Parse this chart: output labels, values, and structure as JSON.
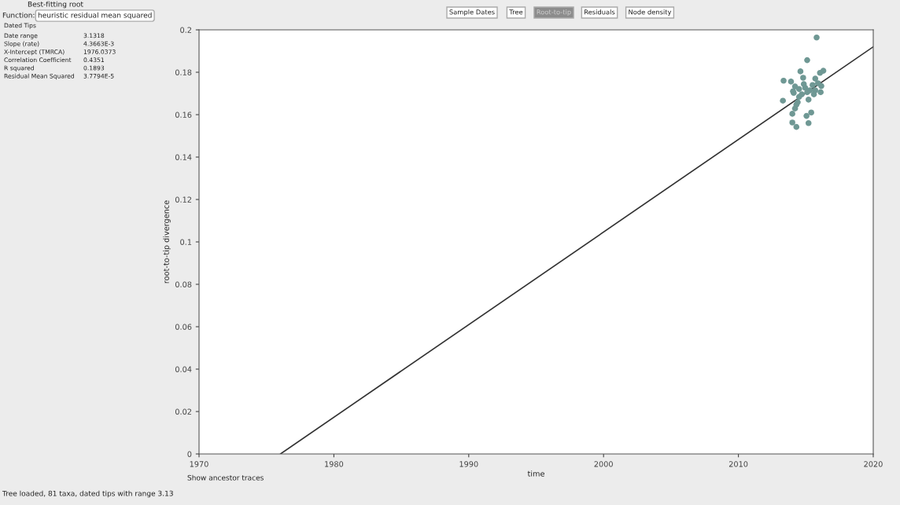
{
  "chart_data": {
    "type": "scatter",
    "xlabel": "time",
    "ylabel": "root-to-tip divergence",
    "xlim": [
      1970,
      2020
    ],
    "xticks": [
      1970,
      1980,
      1990,
      2000,
      2010,
      2020
    ],
    "ylim": [
      0,
      0.2
    ],
    "yticks": [
      0,
      0.02,
      0.04,
      0.06,
      0.08,
      0.1,
      0.12,
      0.14,
      0.16,
      0.18,
      0.2
    ],
    "grid": false,
    "series": [
      {
        "color": "#6f9894",
        "marker": "circle",
        "x": [
          2015.8,
          2015.1,
          2014.6,
          2013.35,
          2013.9,
          2016.3,
          2016.05,
          2014.8,
          2015.7,
          2014.2,
          2014.5,
          2014.95,
          2015.5,
          2015.9,
          2015.3,
          2014.1,
          2014.7,
          2015.1,
          2016.1,
          2015.7,
          2014.5,
          2015.2,
          2013.3,
          2014.3,
          2014.2,
          2015.4,
          2014.0,
          2015.05,
          2015.2,
          2014.0,
          2014.3,
          2014.05,
          2014.85,
          2016.15,
          2014.4,
          2015.6
        ],
        "values": [
          0.1964,
          0.1857,
          0.1804,
          0.176,
          0.1756,
          0.1807,
          0.1797,
          0.1774,
          0.177,
          0.1733,
          0.1721,
          0.1727,
          0.174,
          0.1748,
          0.1715,
          0.1703,
          0.1696,
          0.1706,
          0.1706,
          0.1715,
          0.1684,
          0.1671,
          0.1666,
          0.1647,
          0.1629,
          0.161,
          0.1604,
          0.1594,
          0.156,
          0.1563,
          0.1542,
          0.171,
          0.1744,
          0.1735,
          0.1659,
          0.1696
        ]
      },
      {
        "type": "line",
        "color": "#333333",
        "x": [
          1976.0373,
          2020
        ],
        "values": [
          0,
          0.192
        ]
      }
    ],
    "annotations": [
      "Best-fitting root",
      "Function:",
      "heuristic residual mean squared",
      "Dated Tips",
      "Date range",
      "3.1318",
      "Slope (rate)",
      "4.3663E-3",
      "X-Intercept (TMRCA)",
      "1976.0373",
      "Correlation Coefficient",
      "0.4351",
      "R squared",
      "0.1893",
      "Residual Mean Squared",
      "3.7794E-5",
      "Sample Dates",
      "Tree",
      "Root-to-tip",
      "Residuals",
      "Node density",
      "Show ancestor traces",
      "Tree loaded, 81 taxa, dated tips with range 3.13"
    ]
  }
}
